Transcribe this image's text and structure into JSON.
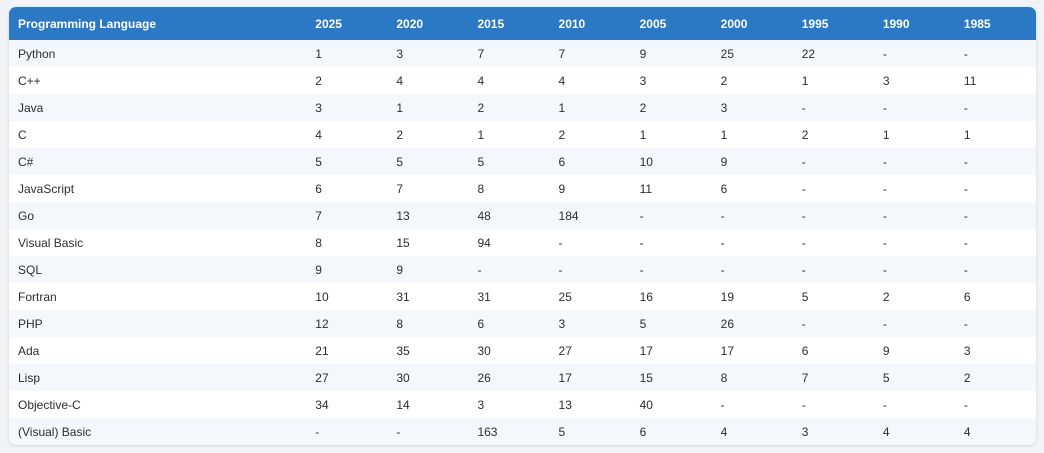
{
  "table": {
    "headers": [
      "Programming Language",
      "2025",
      "2020",
      "2015",
      "2010",
      "2005",
      "2000",
      "1995",
      "1990",
      "1985"
    ],
    "rows": [
      [
        "Python",
        "1",
        "3",
        "7",
        "7",
        "9",
        "25",
        "22",
        "-",
        "-"
      ],
      [
        "C++",
        "2",
        "4",
        "4",
        "4",
        "3",
        "2",
        "1",
        "3",
        "11"
      ],
      [
        "Java",
        "3",
        "1",
        "2",
        "1",
        "2",
        "3",
        "-",
        "-",
        "-"
      ],
      [
        "C",
        "4",
        "2",
        "1",
        "2",
        "1",
        "1",
        "2",
        "1",
        "1"
      ],
      [
        "C#",
        "5",
        "5",
        "5",
        "6",
        "10",
        "9",
        "-",
        "-",
        "-"
      ],
      [
        "JavaScript",
        "6",
        "7",
        "8",
        "9",
        "11",
        "6",
        "-",
        "-",
        "-"
      ],
      [
        "Go",
        "7",
        "13",
        "48",
        "184",
        "-",
        "-",
        "-",
        "-",
        "-"
      ],
      [
        "Visual Basic",
        "8",
        "15",
        "94",
        "-",
        "-",
        "-",
        "-",
        "-",
        "-"
      ],
      [
        "SQL",
        "9",
        "9",
        "-",
        "-",
        "-",
        "-",
        "-",
        "-",
        "-"
      ],
      [
        "Fortran",
        "10",
        "31",
        "31",
        "25",
        "16",
        "19",
        "5",
        "2",
        "6"
      ],
      [
        "PHP",
        "12",
        "8",
        "6",
        "3",
        "5",
        "26",
        "-",
        "-",
        "-"
      ],
      [
        "Ada",
        "21",
        "35",
        "30",
        "27",
        "17",
        "17",
        "6",
        "9",
        "3"
      ],
      [
        "Lisp",
        "27",
        "30",
        "26",
        "17",
        "15",
        "8",
        "7",
        "5",
        "2"
      ],
      [
        "Objective-C",
        "34",
        "14",
        "3",
        "13",
        "40",
        "-",
        "-",
        "-",
        "-"
      ],
      [
        "(Visual) Basic",
        "-",
        "-",
        "163",
        "5",
        "6",
        "4",
        "3",
        "4",
        "4"
      ]
    ]
  },
  "colors": {
    "header_bg": "#2b78c5",
    "header_text": "#ffffff",
    "row_alt_bg": "#f4f8fc",
    "row_bg": "#ffffff",
    "page_bg": "#f1f3f6"
  }
}
